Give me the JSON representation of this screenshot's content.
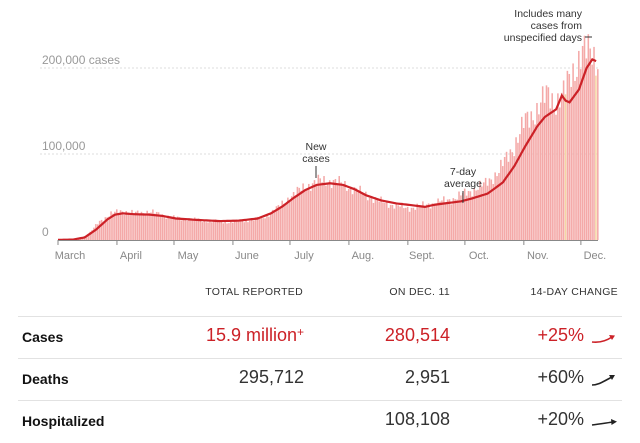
{
  "chart_data": {
    "type": "bar",
    "ylabel_unit": "cases",
    "ytick_labels": [
      "0",
      "100,000",
      "200,000 cases"
    ],
    "yticks": [
      0,
      100000,
      200000
    ],
    "ylim": [
      0,
      230000
    ],
    "months": [
      "March",
      "April",
      "May",
      "June",
      "July",
      "Aug.",
      "Sept.",
      "Oct.",
      "Nov.",
      "Dec."
    ],
    "month_days": [
      0,
      31,
      61,
      92,
      122,
      153,
      184,
      214,
      245,
      275
    ],
    "daily_anchors": [
      [
        0,
        50
      ],
      [
        10,
        1200
      ],
      [
        16,
        6000
      ],
      [
        22,
        22000
      ],
      [
        28,
        30000
      ],
      [
        33,
        34000
      ],
      [
        40,
        31000
      ],
      [
        48,
        33000
      ],
      [
        55,
        29000
      ],
      [
        60,
        26000
      ],
      [
        70,
        24000
      ],
      [
        80,
        22000
      ],
      [
        90,
        21000
      ],
      [
        100,
        23000
      ],
      [
        108,
        26000
      ],
      [
        115,
        36000
      ],
      [
        122,
        50000
      ],
      [
        130,
        62000
      ],
      [
        138,
        69000
      ],
      [
        146,
        68000
      ],
      [
        152,
        63000
      ],
      [
        160,
        55000
      ],
      [
        168,
        46000
      ],
      [
        176,
        41000
      ],
      [
        184,
        37000
      ],
      [
        192,
        40000
      ],
      [
        200,
        44000
      ],
      [
        208,
        48000
      ],
      [
        216,
        56000
      ],
      [
        224,
        64000
      ],
      [
        232,
        80000
      ],
      [
        240,
        110000
      ],
      [
        246,
        138000
      ],
      [
        252,
        152000
      ],
      [
        258,
        170000
      ],
      [
        262,
        160000
      ],
      [
        266,
        168000
      ],
      [
        270,
        195000
      ],
      [
        276,
        215000
      ],
      [
        281,
        223000
      ],
      [
        283,
        211000
      ]
    ],
    "avg_anchors": [
      [
        0,
        100
      ],
      [
        8,
        500
      ],
      [
        14,
        3000
      ],
      [
        20,
        12000
      ],
      [
        26,
        24000
      ],
      [
        30,
        29500
      ],
      [
        34,
        31000
      ],
      [
        40,
        30000
      ],
      [
        48,
        29500
      ],
      [
        55,
        28000
      ],
      [
        62,
        25000
      ],
      [
        72,
        23500
      ],
      [
        85,
        22000
      ],
      [
        95,
        22500
      ],
      [
        105,
        25000
      ],
      [
        112,
        31000
      ],
      [
        118,
        39000
      ],
      [
        124,
        49000
      ],
      [
        130,
        58000
      ],
      [
        136,
        64000
      ],
      [
        143,
        66000
      ],
      [
        150,
        64000
      ],
      [
        156,
        59000
      ],
      [
        162,
        52000
      ],
      [
        170,
        46000
      ],
      [
        178,
        42500
      ],
      [
        186,
        40500
      ],
      [
        193,
        38500
      ],
      [
        198,
        41000
      ],
      [
        205,
        43000
      ],
      [
        212,
        45000
      ],
      [
        218,
        48500
      ],
      [
        226,
        54000
      ],
      [
        234,
        67000
      ],
      [
        240,
        86000
      ],
      [
        246,
        110000
      ],
      [
        252,
        132000
      ],
      [
        256,
        143000
      ],
      [
        262,
        152000
      ],
      [
        265,
        168000
      ],
      [
        267,
        162000
      ],
      [
        269,
        160000
      ],
      [
        274,
        175000
      ],
      [
        278,
        200000
      ],
      [
        281,
        210000
      ],
      [
        283,
        208000
      ]
    ],
    "annotations": {
      "new_cases": [
        "New",
        "cases"
      ],
      "seven_day": [
        "7-day",
        "average"
      ],
      "unspecified": [
        "Includes many",
        "cases from",
        "unspecified days"
      ]
    },
    "colors": {
      "bars": "#f4a9a8",
      "average": "#cc2127",
      "highlight": "#f4d6a3",
      "grid": "#dddddd"
    }
  },
  "table": {
    "headers": {
      "total": "TOTAL REPORTED",
      "daily": "ON DEC. 11",
      "change": "14-DAY CHANGE"
    },
    "rows": [
      {
        "label": "Cases",
        "total": "15.9 million",
        "total_suffix": "+",
        "daily": "280,514",
        "change": "+25%",
        "trend": "up",
        "color": "red"
      },
      {
        "label": "Deaths",
        "total": "295,712",
        "total_suffix": "",
        "daily": "2,951",
        "change": "+60%",
        "trend": "up",
        "color": "gray"
      },
      {
        "label": "Hospitalized",
        "total": "",
        "total_suffix": "",
        "daily": "108,108",
        "change": "+20%",
        "trend": "flat-up",
        "color": "gray"
      }
    ]
  }
}
